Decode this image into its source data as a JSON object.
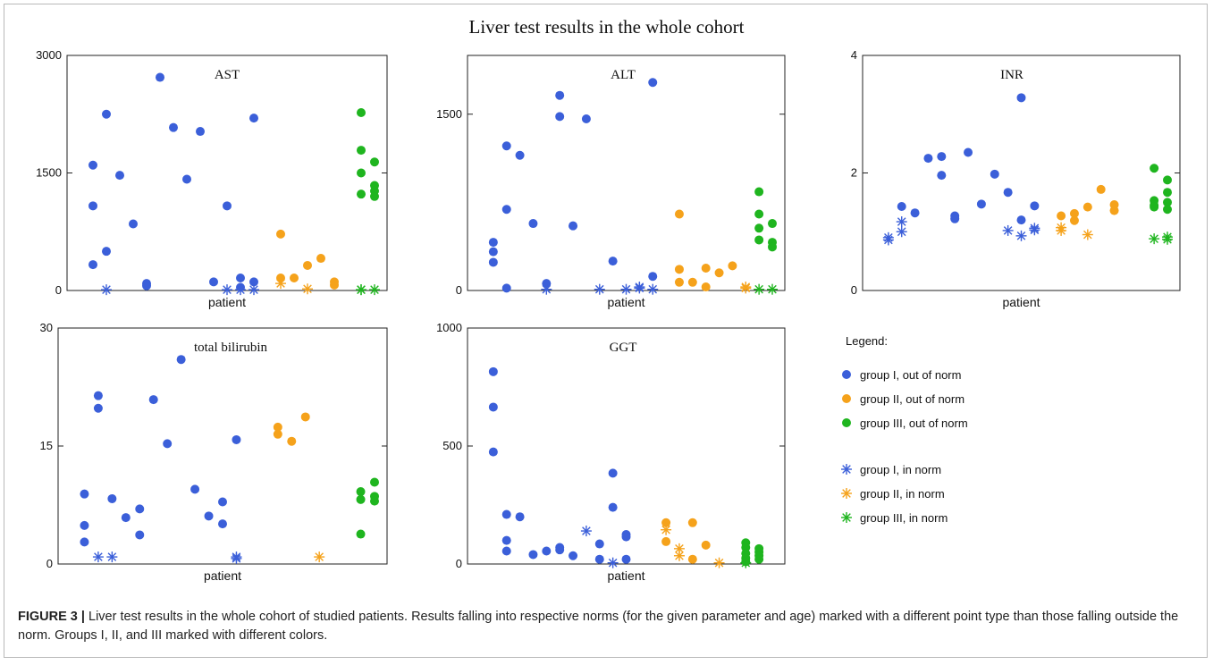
{
  "figure": {
    "title": "Liver test results in the whole cohort",
    "caption_label": "FIGURE 3 |",
    "caption_text": "Liver test results in the whole cohort of studied patients. Results falling into respective norms (for the given parameter and age) marked with a different point type than those falling outside the norm. Groups I, II, and III marked with different colors."
  },
  "colors": {
    "group_I": "#3b5fd9",
    "group_II": "#f5a21b",
    "group_III": "#1fb51f"
  },
  "legend": {
    "title": "Legend:",
    "items": [
      {
        "label": "group I, out of norm",
        "group": "group_I",
        "marker": "dot"
      },
      {
        "label": "group II, out of norm",
        "group": "group_II",
        "marker": "dot"
      },
      {
        "label": "group III, out of norm",
        "group": "group_III",
        "marker": "dot"
      },
      {
        "label": "group I, in norm",
        "group": "group_I",
        "marker": "star"
      },
      {
        "label": "group II, in norm",
        "group": "group_II",
        "marker": "star"
      },
      {
        "label": "group III, in norm",
        "group": "group_III",
        "marker": "star"
      }
    ]
  },
  "chart_data": [
    {
      "type": "scatter",
      "title": "AST",
      "xlabel": "patient",
      "ylim": [
        0,
        3000
      ],
      "yticks": [
        "0",
        "1500",
        "3000"
      ],
      "xlim": [
        0,
        22
      ],
      "series": [
        {
          "group": "group_I",
          "marker": "dot",
          "points": [
            [
              1,
              1600
            ],
            [
              1,
              1080
            ],
            [
              1,
              330
            ],
            [
              2,
              2250
            ],
            [
              2,
              500
            ],
            [
              3,
              1470
            ],
            [
              4,
              850
            ],
            [
              5,
              90
            ],
            [
              5,
              60
            ],
            [
              6,
              2720
            ],
            [
              7,
              2080
            ],
            [
              8,
              1420
            ],
            [
              9,
              2030
            ],
            [
              10,
              110
            ],
            [
              11,
              1080
            ],
            [
              12,
              160
            ],
            [
              12,
              40
            ],
            [
              13,
              2200
            ],
            [
              13,
              110
            ]
          ]
        },
        {
          "group": "group_I",
          "marker": "star",
          "points": [
            [
              2,
              10
            ],
            [
              11,
              10
            ],
            [
              12,
              10
            ],
            [
              13,
              10
            ]
          ]
        },
        {
          "group": "group_II",
          "marker": "dot",
          "points": [
            [
              15,
              720
            ],
            [
              15,
              160
            ],
            [
              16,
              160
            ],
            [
              17,
              320
            ],
            [
              18,
              410
            ],
            [
              19,
              110
            ],
            [
              19,
              70
            ]
          ]
        },
        {
          "group": "group_II",
          "marker": "star",
          "points": [
            [
              15,
              90
            ],
            [
              17,
              20
            ]
          ]
        },
        {
          "group": "group_III",
          "marker": "dot",
          "points": [
            [
              21,
              2270
            ],
            [
              21,
              1790
            ],
            [
              21,
              1500
            ],
            [
              21,
              1230
            ],
            [
              22,
              1640
            ],
            [
              22,
              1340
            ],
            [
              22,
              1270
            ],
            [
              22,
              1200
            ]
          ]
        },
        {
          "group": "group_III",
          "marker": "star",
          "points": [
            [
              21,
              10
            ],
            [
              21,
              10
            ],
            [
              22,
              10
            ]
          ]
        }
      ]
    },
    {
      "type": "scatter",
      "title": "ALT",
      "xlabel": "patient",
      "ylim": [
        0,
        2000
      ],
      "yticks": [
        "0",
        "1500"
      ],
      "ytick_values": [
        0,
        1500
      ],
      "xlim": [
        0,
        22
      ],
      "series": [
        {
          "group": "group_I",
          "marker": "dot",
          "points": [
            [
              1,
              410
            ],
            [
              1,
              330
            ],
            [
              1,
              240
            ],
            [
              2,
              1230
            ],
            [
              2,
              690
            ],
            [
              2,
              20
            ],
            [
              3,
              1150
            ],
            [
              4,
              570
            ],
            [
              5,
              60
            ],
            [
              6,
              1660
            ],
            [
              6,
              1480
            ],
            [
              7,
              550
            ],
            [
              8,
              1460
            ],
            [
              10,
              250
            ],
            [
              13,
              1770
            ],
            [
              13,
              120
            ]
          ]
        },
        {
          "group": "group_I",
          "marker": "star",
          "points": [
            [
              5,
              10
            ],
            [
              9,
              10
            ],
            [
              11,
              10
            ],
            [
              12,
              20
            ],
            [
              12,
              30
            ],
            [
              13,
              10
            ]
          ]
        },
        {
          "group": "group_II",
          "marker": "dot",
          "points": [
            [
              15,
              650
            ],
            [
              15,
              180
            ],
            [
              15,
              70
            ],
            [
              16,
              70
            ],
            [
              17,
              190
            ],
            [
              17,
              30
            ],
            [
              18,
              150
            ],
            [
              19,
              210
            ]
          ]
        },
        {
          "group": "group_II",
          "marker": "star",
          "points": [
            [
              20,
              30
            ],
            [
              20,
              20
            ]
          ]
        },
        {
          "group": "group_III",
          "marker": "dot",
          "points": [
            [
              21,
              840
            ],
            [
              21,
              650
            ],
            [
              21,
              530
            ],
            [
              21,
              430
            ],
            [
              22,
              570
            ],
            [
              22,
              410
            ],
            [
              22,
              370
            ]
          ]
        },
        {
          "group": "group_III",
          "marker": "star",
          "points": [
            [
              21,
              10
            ],
            [
              22,
              10
            ]
          ]
        }
      ]
    },
    {
      "type": "scatter",
      "title": "INR",
      "xlabel": "patient",
      "ylim": [
        0,
        4
      ],
      "yticks": [
        "0",
        "2",
        "4"
      ],
      "xlim": [
        0,
        22
      ],
      "series": [
        {
          "group": "group_I",
          "marker": "dot",
          "points": [
            [
              2,
              1.43
            ],
            [
              3,
              1.32
            ],
            [
              4,
              2.25
            ],
            [
              5,
              2.28
            ],
            [
              5,
              1.96
            ],
            [
              6,
              1.27
            ],
            [
              6,
              1.22
            ],
            [
              7,
              2.35
            ],
            [
              8,
              1.47
            ],
            [
              9,
              1.98
            ],
            [
              10,
              1.67
            ],
            [
              11,
              3.28
            ],
            [
              11,
              1.2
            ],
            [
              12,
              1.44
            ]
          ]
        },
        {
          "group": "group_I",
          "marker": "star",
          "points": [
            [
              1,
              0.9
            ],
            [
              1,
              0.86
            ],
            [
              2,
              1.17
            ],
            [
              2,
              1.0
            ],
            [
              10,
              1.02
            ],
            [
              11,
              0.93
            ],
            [
              12,
              1.06
            ],
            [
              12,
              1.03
            ]
          ]
        },
        {
          "group": "group_II",
          "marker": "dot",
          "points": [
            [
              14,
              1.27
            ],
            [
              15,
              1.31
            ],
            [
              15,
              1.19
            ],
            [
              16,
              1.42
            ],
            [
              17,
              1.72
            ],
            [
              18,
              1.46
            ],
            [
              18,
              1.36
            ]
          ]
        },
        {
          "group": "group_II",
          "marker": "star",
          "points": [
            [
              14,
              1.07
            ],
            [
              14,
              1.02
            ],
            [
              16,
              0.95
            ]
          ]
        },
        {
          "group": "group_III",
          "marker": "dot",
          "points": [
            [
              21,
              2.08
            ],
            [
              21,
              1.53
            ],
            [
              21,
              1.45
            ],
            [
              22,
              1.88
            ],
            [
              22,
              1.67
            ],
            [
              22,
              1.5
            ],
            [
              22,
              1.38
            ],
            [
              21,
              1.42
            ]
          ]
        },
        {
          "group": "group_III",
          "marker": "star",
          "points": [
            [
              21,
              0.88
            ],
            [
              22,
              0.91
            ],
            [
              22,
              0.87
            ]
          ]
        }
      ]
    },
    {
      "type": "scatter",
      "title": "total bilirubin",
      "xlabel": "patient",
      "ylim": [
        0,
        30
      ],
      "yticks": [
        "0",
        "15",
        "30"
      ],
      "xlim": [
        0,
        22
      ],
      "series": [
        {
          "group": "group_I",
          "marker": "dot",
          "points": [
            [
              1,
              8.9
            ],
            [
              1,
              4.9
            ],
            [
              1,
              2.8
            ],
            [
              2,
              21.4
            ],
            [
              2,
              19.8
            ],
            [
              3,
              8.3
            ],
            [
              4,
              5.9
            ],
            [
              5,
              7.0
            ],
            [
              5,
              3.7
            ],
            [
              6,
              20.9
            ],
            [
              7,
              15.3
            ],
            [
              8,
              26.0
            ],
            [
              9,
              9.5
            ],
            [
              10,
              6.1
            ],
            [
              11,
              7.9
            ],
            [
              11,
              5.1
            ],
            [
              12,
              15.8
            ]
          ]
        },
        {
          "group": "group_I",
          "marker": "star",
          "points": [
            [
              2,
              0.9
            ],
            [
              3,
              0.9
            ],
            [
              12,
              0.7
            ],
            [
              12,
              0.9
            ]
          ]
        },
        {
          "group": "group_II",
          "marker": "dot",
          "points": [
            [
              15,
              17.4
            ],
            [
              15,
              16.5
            ],
            [
              16,
              15.6
            ],
            [
              17,
              18.7
            ]
          ]
        },
        {
          "group": "group_II",
          "marker": "star",
          "points": [
            [
              18,
              0.9
            ]
          ]
        },
        {
          "group": "group_III",
          "marker": "dot",
          "points": [
            [
              21,
              9.2
            ],
            [
              21,
              8.2
            ],
            [
              21,
              3.8
            ],
            [
              22,
              10.4
            ],
            [
              22,
              8.6
            ],
            [
              22,
              8.0
            ]
          ]
        }
      ]
    },
    {
      "type": "scatter",
      "title": "GGT",
      "xlabel": "patient",
      "ylim": [
        0,
        1000
      ],
      "yticks": [
        "0",
        "500",
        "1000"
      ],
      "xlim": [
        0,
        22
      ],
      "series": [
        {
          "group": "group_I",
          "marker": "dot",
          "points": [
            [
              1,
              815
            ],
            [
              1,
              665
            ],
            [
              1,
              475
            ],
            [
              2,
              210
            ],
            [
              2,
              100
            ],
            [
              2,
              55
            ],
            [
              3,
              200
            ],
            [
              4,
              40
            ],
            [
              5,
              55
            ],
            [
              6,
              70
            ],
            [
              6,
              60
            ],
            [
              7,
              35
            ],
            [
              9,
              85
            ],
            [
              9,
              20
            ],
            [
              10,
              385
            ],
            [
              10,
              240
            ],
            [
              11,
              125
            ],
            [
              11,
              115
            ],
            [
              11,
              20
            ]
          ]
        },
        {
          "group": "group_I",
          "marker": "star",
          "points": [
            [
              8,
              140
            ],
            [
              10,
              5
            ]
          ]
        },
        {
          "group": "group_II",
          "marker": "dot",
          "points": [
            [
              14,
              175
            ],
            [
              14,
              95
            ],
            [
              16,
              175
            ],
            [
              16,
              20
            ],
            [
              17,
              80
            ]
          ]
        },
        {
          "group": "group_II",
          "marker": "star",
          "points": [
            [
              14,
              145
            ],
            [
              15,
              65
            ],
            [
              15,
              35
            ],
            [
              18,
              5
            ]
          ]
        },
        {
          "group": "group_III",
          "marker": "dot",
          "points": [
            [
              20,
              90
            ],
            [
              20,
              70
            ],
            [
              20,
              45
            ],
            [
              20,
              25
            ],
            [
              20,
              10
            ],
            [
              21,
              65
            ],
            [
              21,
              50
            ],
            [
              21,
              35
            ],
            [
              21,
              20
            ]
          ]
        },
        {
          "group": "group_III",
          "marker": "star",
          "points": [
            [
              20,
              5
            ]
          ]
        }
      ]
    }
  ]
}
